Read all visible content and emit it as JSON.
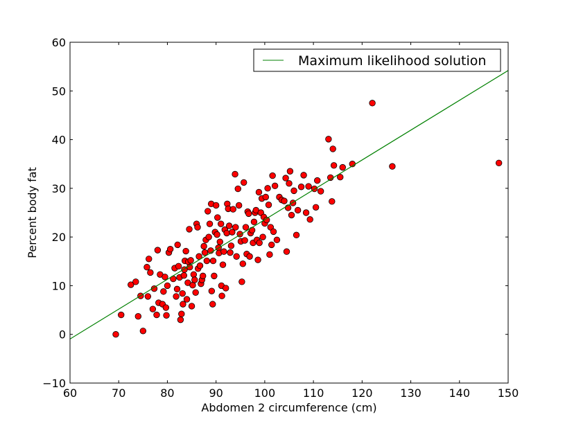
{
  "chart_data": {
    "type": "scatter",
    "title": "",
    "xlabel": "Abdomen 2 circumference (cm)",
    "ylabel": "Percent body fat",
    "xlim": [
      60,
      150
    ],
    "ylim": [
      -10,
      60
    ],
    "x_ticks": [
      "60",
      "70",
      "80",
      "90",
      "100",
      "110",
      "120",
      "130",
      "140",
      "150"
    ],
    "y_ticks": [
      "−10",
      "0",
      "10",
      "20",
      "30",
      "40",
      "50",
      "60"
    ],
    "grid": false,
    "legend": {
      "position": "top-right",
      "entries": [
        "Maximum likelihood solution"
      ]
    },
    "series": [
      {
        "kind": "points",
        "color": "#ff0000",
        "edge_color": "#000000",
        "points": [
          [
            69.4,
            0.0
          ],
          [
            70.5,
            4.0
          ],
          [
            72.5,
            10.2
          ],
          [
            73.5,
            10.8
          ],
          [
            74.0,
            3.7
          ],
          [
            74.5,
            7.9
          ],
          [
            75.0,
            0.7
          ],
          [
            75.8,
            13.8
          ],
          [
            76.0,
            7.8
          ],
          [
            76.2,
            15.5
          ],
          [
            76.5,
            12.7
          ],
          [
            77.0,
            5.2
          ],
          [
            77.3,
            9.4
          ],
          [
            77.8,
            4.0
          ],
          [
            78.0,
            17.3
          ],
          [
            78.2,
            6.5
          ],
          [
            78.5,
            12.3
          ],
          [
            79.0,
            6.2
          ],
          [
            79.2,
            8.8
          ],
          [
            79.5,
            11.8
          ],
          [
            79.8,
            3.9
          ],
          [
            80.0,
            10.0
          ],
          [
            79.7,
            5.5
          ],
          [
            80.3,
            16.8
          ],
          [
            80.6,
            17.5
          ],
          [
            81.2,
            11.4
          ],
          [
            81.5,
            13.6
          ],
          [
            81.8,
            7.8
          ],
          [
            82.0,
            9.3
          ],
          [
            82.1,
            18.4
          ],
          [
            82.3,
            14.0
          ],
          [
            82.5,
            11.7
          ],
          [
            82.7,
            3.0
          ],
          [
            82.9,
            4.2
          ],
          [
            83.1,
            8.4
          ],
          [
            83.2,
            6.2
          ],
          [
            83.4,
            12.1
          ],
          [
            83.5,
            13.3
          ],
          [
            83.6,
            15.1
          ],
          [
            83.8,
            17.1
          ],
          [
            84.0,
            7.2
          ],
          [
            84.2,
            10.6
          ],
          [
            84.3,
            14.9
          ],
          [
            84.5,
            21.6
          ],
          [
            84.6,
            13.8
          ],
          [
            84.8,
            15.2
          ],
          [
            85.0,
            5.8
          ],
          [
            85.2,
            10.1
          ],
          [
            85.4,
            12.3
          ],
          [
            85.6,
            11.2
          ],
          [
            85.8,
            8.6
          ],
          [
            86.0,
            22.7
          ],
          [
            86.2,
            22.0
          ],
          [
            86.3,
            13.5
          ],
          [
            86.5,
            16.0
          ],
          [
            86.7,
            14.1
          ],
          [
            86.9,
            10.4
          ],
          [
            87.1,
            11.2
          ],
          [
            87.3,
            12.0
          ],
          [
            87.5,
            18.1
          ],
          [
            87.7,
            16.8
          ],
          [
            87.9,
            19.4
          ],
          [
            88.1,
            15.1
          ],
          [
            88.3,
            25.3
          ],
          [
            88.5,
            20.0
          ],
          [
            88.7,
            22.7
          ],
          [
            88.9,
            17.2
          ],
          [
            89.0,
            26.8
          ],
          [
            89.1,
            8.9
          ],
          [
            89.3,
            6.2
          ],
          [
            89.4,
            15.1
          ],
          [
            89.6,
            12.0
          ],
          [
            89.8,
            21.0
          ],
          [
            90.0,
            26.5
          ],
          [
            90.2,
            20.5
          ],
          [
            90.3,
            24.0
          ],
          [
            90.5,
            17.8
          ],
          [
            90.6,
            16.7
          ],
          [
            90.8,
            19.0
          ],
          [
            91.0,
            22.7
          ],
          [
            91.1,
            10.0
          ],
          [
            91.2,
            7.9
          ],
          [
            91.4,
            14.3
          ],
          [
            91.6,
            17.0
          ],
          [
            91.8,
            21.5
          ],
          [
            92.0,
            9.5
          ],
          [
            92.2,
            20.8
          ],
          [
            92.3,
            26.8
          ],
          [
            92.5,
            25.8
          ],
          [
            92.7,
            22.3
          ],
          [
            92.9,
            16.8
          ],
          [
            93.1,
            18.2
          ],
          [
            93.3,
            21.0
          ],
          [
            93.5,
            25.7
          ],
          [
            93.9,
            32.9
          ],
          [
            94.0,
            22.0
          ],
          [
            94.2,
            16.0
          ],
          [
            94.5,
            29.9
          ],
          [
            94.7,
            26.5
          ],
          [
            94.9,
            20.6
          ],
          [
            95.1,
            19.1
          ],
          [
            95.3,
            10.8
          ],
          [
            95.5,
            14.5
          ],
          [
            95.7,
            31.2
          ],
          [
            95.9,
            19.3
          ],
          [
            96.1,
            22.0
          ],
          [
            96.3,
            16.5
          ],
          [
            96.5,
            25.2
          ],
          [
            96.7,
            24.8
          ],
          [
            96.9,
            16.0
          ],
          [
            97.1,
            20.8
          ],
          [
            97.4,
            21.4
          ],
          [
            97.6,
            18.8
          ],
          [
            97.8,
            23.1
          ],
          [
            98.0,
            25.0
          ],
          [
            98.2,
            25.5
          ],
          [
            98.4,
            19.4
          ],
          [
            98.6,
            15.3
          ],
          [
            98.8,
            29.2
          ],
          [
            98.9,
            18.8
          ],
          [
            99.2,
            25.0
          ],
          [
            99.4,
            27.9
          ],
          [
            99.6,
            20.0
          ],
          [
            99.8,
            24.1
          ],
          [
            100.0,
            22.8
          ],
          [
            100.2,
            28.2
          ],
          [
            100.4,
            23.5
          ],
          [
            100.6,
            30.0
          ],
          [
            100.8,
            26.6
          ],
          [
            101.0,
            16.4
          ],
          [
            101.2,
            22.0
          ],
          [
            101.4,
            18.4
          ],
          [
            101.6,
            32.6
          ],
          [
            101.8,
            21.1
          ],
          [
            102.1,
            30.5
          ],
          [
            102.5,
            19.4
          ],
          [
            103.0,
            28.2
          ],
          [
            103.5,
            27.6
          ],
          [
            104.0,
            27.4
          ],
          [
            104.3,
            32.1
          ],
          [
            104.5,
            17.0
          ],
          [
            104.8,
            26.0
          ],
          [
            105.0,
            31.0
          ],
          [
            105.2,
            33.5
          ],
          [
            105.5,
            24.5
          ],
          [
            105.8,
            27.0
          ],
          [
            106.0,
            29.5
          ],
          [
            106.5,
            20.4
          ],
          [
            106.8,
            25.5
          ],
          [
            107.5,
            30.3
          ],
          [
            108.0,
            32.7
          ],
          [
            108.5,
            25.0
          ],
          [
            109.0,
            30.4
          ],
          [
            109.3,
            23.6
          ],
          [
            110.2,
            29.9
          ],
          [
            110.5,
            26.1
          ],
          [
            110.8,
            31.6
          ],
          [
            111.5,
            29.4
          ],
          [
            113.1,
            40.1
          ],
          [
            113.5,
            32.2
          ],
          [
            113.8,
            27.3
          ],
          [
            114.0,
            38.1
          ],
          [
            114.2,
            34.7
          ],
          [
            115.5,
            32.3
          ],
          [
            116.0,
            34.3
          ],
          [
            118.0,
            35.0
          ],
          [
            122.1,
            47.5
          ],
          [
            126.2,
            34.5
          ],
          [
            148.1,
            35.2
          ]
        ]
      },
      {
        "kind": "line",
        "name": "Maximum likelihood solution",
        "color": "#008000",
        "x": [
          60,
          150
        ],
        "y": [
          -0.95,
          54.2
        ]
      }
    ]
  }
}
